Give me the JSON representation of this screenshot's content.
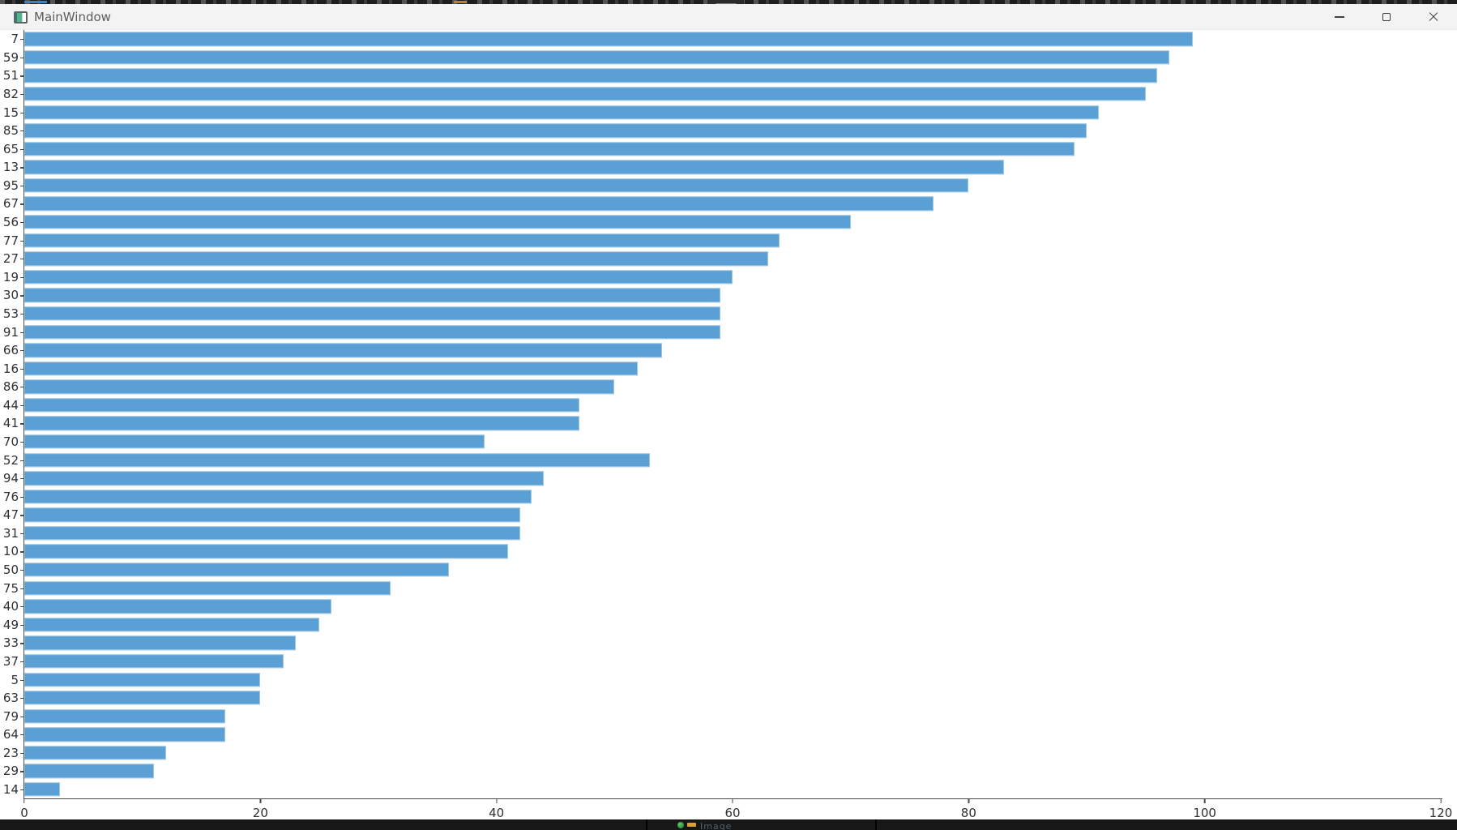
{
  "window": {
    "title": "MainWindow",
    "app_icon": "qt-window-icon",
    "controls": [
      "minimize",
      "maximize",
      "close"
    ]
  },
  "background_slivers": {
    "top": "edge of dark window behind",
    "connection_tab": "collapsed remote-session grip tab",
    "bottom_text_fragment": "Image"
  },
  "chart_data": {
    "type": "bar",
    "orientation": "horizontal",
    "title": "",
    "xlabel": "",
    "ylabel": "",
    "categories": [
      "7",
      "59",
      "51",
      "82",
      "15",
      "85",
      "65",
      "13",
      "95",
      "67",
      "56",
      "77",
      "27",
      "19",
      "30",
      "53",
      "91",
      "66",
      "16",
      "86",
      "44",
      "41",
      "70",
      "52",
      "94",
      "76",
      "47",
      "31",
      "10",
      "50",
      "75",
      "40",
      "49",
      "33",
      "37",
      "5",
      "63",
      "79",
      "64",
      "23",
      "29",
      "14"
    ],
    "values": [
      99,
      97,
      96,
      95,
      91,
      90,
      89,
      83,
      80,
      77,
      70,
      64,
      63,
      60,
      59,
      59,
      59,
      54,
      52,
      50,
      47,
      47,
      39,
      53,
      44,
      43,
      42,
      42,
      41,
      36,
      31,
      26,
      25,
      23,
      22,
      20,
      20,
      17,
      17,
      12,
      11,
      3
    ],
    "xlim": [
      0,
      120
    ],
    "xticks": [
      0,
      20,
      40,
      60,
      80,
      100,
      120
    ],
    "grid": false,
    "legend": null,
    "bar_color": "#5aa0d4",
    "axis_color": "#4a4a4a",
    "tick_label_color": "#303030"
  }
}
